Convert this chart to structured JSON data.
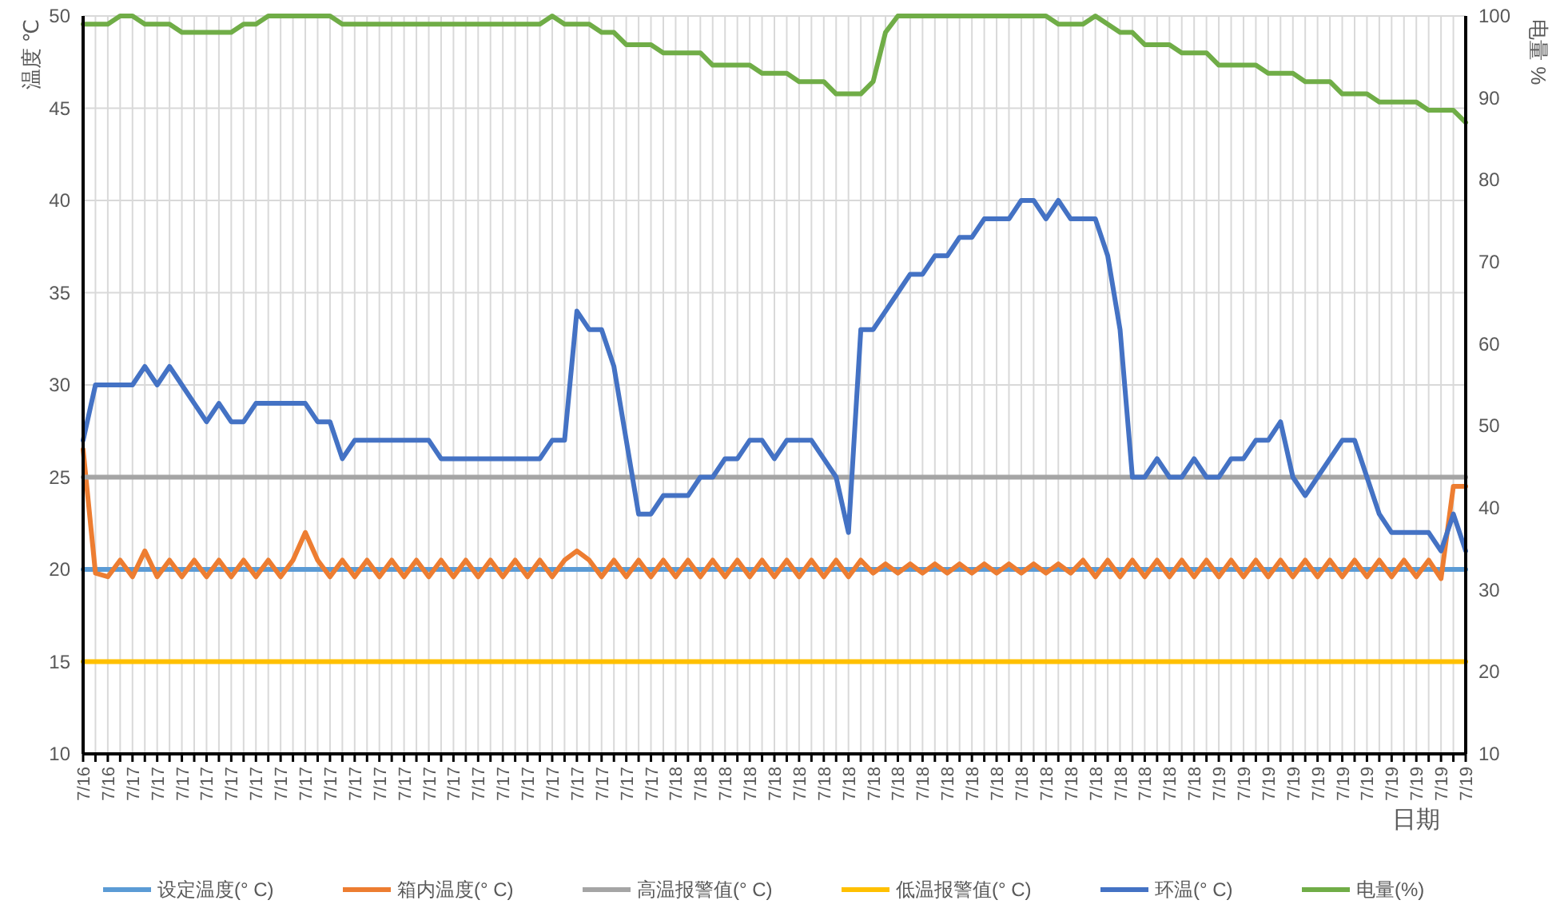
{
  "chart_data": {
    "type": "line",
    "ylabel": "温度 ℃",
    "y2label": "电量 %",
    "xlabel": "日期",
    "legend": "bottom",
    "grid": true,
    "marker": "none",
    "line_style": "solid",
    "categories": [
      "7/16",
      null,
      "7/16",
      null,
      "7/17",
      null,
      "7/17",
      null,
      "7/17",
      null,
      "7/17",
      null,
      "7/17",
      null,
      "7/17",
      null,
      "7/17",
      null,
      "7/17",
      null,
      "7/17",
      null,
      "7/17",
      null,
      "7/17",
      null,
      "7/17",
      null,
      "7/17",
      null,
      "7/17",
      null,
      "7/17",
      null,
      "7/17",
      null,
      "7/17",
      null,
      "7/17",
      null,
      "7/17",
      null,
      "7/17",
      null,
      "7/17",
      null,
      "7/17",
      null,
      "7/18",
      null,
      "7/18",
      null,
      "7/18",
      null,
      "7/18",
      null,
      "7/18",
      null,
      "7/18",
      null,
      "7/18",
      null,
      "7/18",
      null,
      "7/18",
      null,
      "7/18",
      null,
      "7/18",
      null,
      "7/18",
      null,
      "7/18",
      null,
      "7/18",
      null,
      "7/18",
      null,
      "7/18",
      null,
      "7/18",
      null,
      "7/18",
      null,
      "7/18",
      null,
      "7/18",
      null,
      "7/18",
      null,
      "7/18",
      null,
      "7/19",
      null,
      "7/19",
      null,
      "7/19",
      null,
      "7/19",
      null,
      "7/19",
      null,
      "7/19",
      null,
      "7/19",
      null,
      "7/19",
      null,
      "7/19",
      null,
      "7/19",
      null,
      "7/19"
    ],
    "ylim": [
      10,
      50
    ],
    "yticks": [
      10,
      15,
      20,
      25,
      30,
      35,
      40,
      45,
      50
    ],
    "y2lim": [
      10,
      100
    ],
    "y2ticks": [
      10,
      20,
      30,
      40,
      50,
      60,
      70,
      80,
      90,
      100
    ],
    "series": [
      {
        "name": "设定温度(° C)",
        "color": "#5b9bd5",
        "values": [
          20,
          20,
          20,
          20,
          20,
          20,
          20,
          20,
          20,
          20,
          20,
          20,
          20,
          20,
          20,
          20,
          20,
          20,
          20,
          20,
          20,
          20,
          20,
          20,
          20,
          20,
          20,
          20,
          20,
          20,
          20,
          20,
          20,
          20,
          20,
          20,
          20,
          20,
          20,
          20,
          20,
          20,
          20,
          20,
          20,
          20,
          20,
          20,
          20,
          20,
          20,
          20,
          20,
          20,
          20,
          20,
          20,
          20,
          20,
          20,
          20,
          20,
          20,
          20,
          20,
          20,
          20,
          20,
          20,
          20,
          20,
          20,
          20,
          20,
          20,
          20,
          20,
          20,
          20,
          20,
          20,
          20,
          20,
          20,
          20,
          20,
          20,
          20,
          20,
          20,
          20,
          20,
          20,
          20,
          20,
          20,
          20,
          20,
          20,
          20,
          20,
          20,
          20,
          20,
          20,
          20,
          20,
          20,
          20,
          20,
          20,
          20,
          20
        ]
      },
      {
        "name": "箱内温度(° C)",
        "color": "#ed7d31",
        "values": [
          26.5,
          19.8,
          19.6,
          20.5,
          19.6,
          21,
          19.6,
          20.5,
          19.6,
          20.5,
          19.6,
          20.5,
          19.6,
          20.5,
          19.6,
          20.5,
          19.6,
          20.5,
          22,
          20.5,
          19.6,
          20.5,
          19.6,
          20.5,
          19.6,
          20.5,
          19.6,
          20.5,
          19.6,
          20.5,
          19.6,
          20.5,
          19.6,
          20.5,
          19.6,
          20.5,
          19.6,
          20.5,
          19.6,
          20.5,
          21,
          20.5,
          19.6,
          20.5,
          19.6,
          20.5,
          19.6,
          20.5,
          19.6,
          20.5,
          19.6,
          20.5,
          19.6,
          20.5,
          19.6,
          20.5,
          19.6,
          20.5,
          19.6,
          20.5,
          19.6,
          20.5,
          19.6,
          20.5,
          19.8,
          20.3,
          19.8,
          20.3,
          19.8,
          20.3,
          19.8,
          20.3,
          19.8,
          20.3,
          19.8,
          20.3,
          19.8,
          20.3,
          19.8,
          20.3,
          19.8,
          20.5,
          19.6,
          20.5,
          19.6,
          20.5,
          19.6,
          20.5,
          19.6,
          20.5,
          19.6,
          20.5,
          19.6,
          20.5,
          19.6,
          20.5,
          19.6,
          20.5,
          19.6,
          20.5,
          19.6,
          20.5,
          19.6,
          20.5,
          19.6,
          20.5,
          19.6,
          20.5,
          19.6,
          20.5,
          19.5,
          24.5,
          24.5
        ]
      },
      {
        "name": "高温报警值(° C)",
        "color": "#a5a5a5",
        "values": [
          25,
          25,
          25,
          25,
          25,
          25,
          25,
          25,
          25,
          25,
          25,
          25,
          25,
          25,
          25,
          25,
          25,
          25,
          25,
          25,
          25,
          25,
          25,
          25,
          25,
          25,
          25,
          25,
          25,
          25,
          25,
          25,
          25,
          25,
          25,
          25,
          25,
          25,
          25,
          25,
          25,
          25,
          25,
          25,
          25,
          25,
          25,
          25,
          25,
          25,
          25,
          25,
          25,
          25,
          25,
          25,
          25,
          25,
          25,
          25,
          25,
          25,
          25,
          25,
          25,
          25,
          25,
          25,
          25,
          25,
          25,
          25,
          25,
          25,
          25,
          25,
          25,
          25,
          25,
          25,
          25,
          25,
          25,
          25,
          25,
          25,
          25,
          25,
          25,
          25,
          25,
          25,
          25,
          25,
          25,
          25,
          25,
          25,
          25,
          25,
          25,
          25,
          25,
          25,
          25,
          25,
          25,
          25,
          25,
          25,
          25,
          25,
          25
        ]
      },
      {
        "name": "低温报警值(° C)",
        "color": "#ffc000",
        "values": [
          15,
          15,
          15,
          15,
          15,
          15,
          15,
          15,
          15,
          15,
          15,
          15,
          15,
          15,
          15,
          15,
          15,
          15,
          15,
          15,
          15,
          15,
          15,
          15,
          15,
          15,
          15,
          15,
          15,
          15,
          15,
          15,
          15,
          15,
          15,
          15,
          15,
          15,
          15,
          15,
          15,
          15,
          15,
          15,
          15,
          15,
          15,
          15,
          15,
          15,
          15,
          15,
          15,
          15,
          15,
          15,
          15,
          15,
          15,
          15,
          15,
          15,
          15,
          15,
          15,
          15,
          15,
          15,
          15,
          15,
          15,
          15,
          15,
          15,
          15,
          15,
          15,
          15,
          15,
          15,
          15,
          15,
          15,
          15,
          15,
          15,
          15,
          15,
          15,
          15,
          15,
          15,
          15,
          15,
          15,
          15,
          15,
          15,
          15,
          15,
          15,
          15,
          15,
          15,
          15,
          15,
          15,
          15,
          15,
          15,
          15,
          15,
          15
        ]
      },
      {
        "name": "环温(° C)",
        "color": "#4472c4",
        "values": [
          27,
          30,
          30,
          30,
          30,
          31,
          30,
          31,
          30,
          29,
          28,
          29,
          28,
          28,
          29,
          29,
          29,
          29,
          29,
          28,
          28,
          26,
          27,
          27,
          27,
          27,
          27,
          27,
          27,
          26,
          26,
          26,
          26,
          26,
          26,
          26,
          26,
          26,
          27,
          27,
          34,
          33,
          33,
          31,
          27,
          23,
          23,
          24,
          24,
          24,
          25,
          25,
          26,
          26,
          27,
          27,
          26,
          27,
          27,
          27,
          26,
          25,
          22,
          33,
          33,
          34,
          35,
          36,
          36,
          37,
          37,
          38,
          38,
          39,
          39,
          39,
          40,
          40,
          39,
          40,
          39,
          39,
          39,
          37,
          33,
          25,
          25,
          26,
          25,
          25,
          26,
          25,
          25,
          26,
          26,
          27,
          27,
          28,
          25,
          24,
          25,
          26,
          27,
          27,
          25,
          23,
          22,
          22,
          22,
          22,
          21,
          23,
          21
        ]
      },
      {
        "name": "电量(%)",
        "color": "#70ad47",
        "axis": "y2",
        "values": [
          99,
          99,
          99,
          100,
          100,
          99,
          99,
          99,
          98,
          98,
          98,
          98,
          98,
          99,
          99,
          100,
          100,
          100,
          100,
          100,
          100,
          99,
          99,
          99,
          99,
          99,
          99,
          99,
          99,
          99,
          99,
          99,
          99,
          99,
          99,
          99,
          99,
          99,
          100,
          99,
          99,
          99,
          98,
          98,
          96.5,
          96.5,
          96.5,
          95.5,
          95.5,
          95.5,
          95.5,
          94,
          94,
          94,
          94,
          93,
          93,
          93,
          92,
          92,
          92,
          90.5,
          90.5,
          90.5,
          92,
          98,
          100,
          100,
          100,
          100,
          100,
          100,
          100,
          100,
          100,
          100,
          100,
          100,
          100,
          99,
          99,
          99,
          100,
          99,
          98,
          98,
          96.5,
          96.5,
          96.5,
          95.5,
          95.5,
          95.5,
          94,
          94,
          94,
          94,
          93,
          93,
          93,
          92,
          92,
          92,
          90.5,
          90.5,
          90.5,
          89.5,
          89.5,
          89.5,
          89.5,
          88.5,
          88.5,
          88.5,
          87
        ]
      }
    ]
  }
}
